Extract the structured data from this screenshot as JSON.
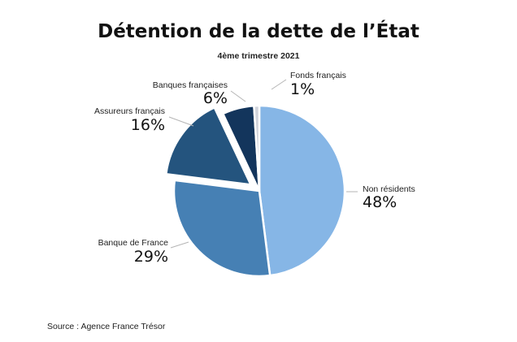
{
  "chart_data": {
    "type": "pie",
    "title": "Détention de la dette de l’État",
    "subtitle": "4ème trimestre 2021",
    "slices": [
      {
        "label": "Non résidents",
        "value": 48,
        "value_label": "48%",
        "color": "#86b6e6"
      },
      {
        "label": "Banque de France",
        "value": 29,
        "value_label": "29%",
        "color": "#4680b4"
      },
      {
        "label": "Assureurs français",
        "value": 16,
        "value_label": "16%",
        "color": "#24547e",
        "exploded": true
      },
      {
        "label": "Banques françaises",
        "value": 6,
        "value_label": "6%",
        "color": "#13355c"
      },
      {
        "label": "Fonds français",
        "value": 1,
        "value_label": "1%",
        "color": "#d0d3db"
      }
    ],
    "source": "Source : Agence France Trésor"
  }
}
